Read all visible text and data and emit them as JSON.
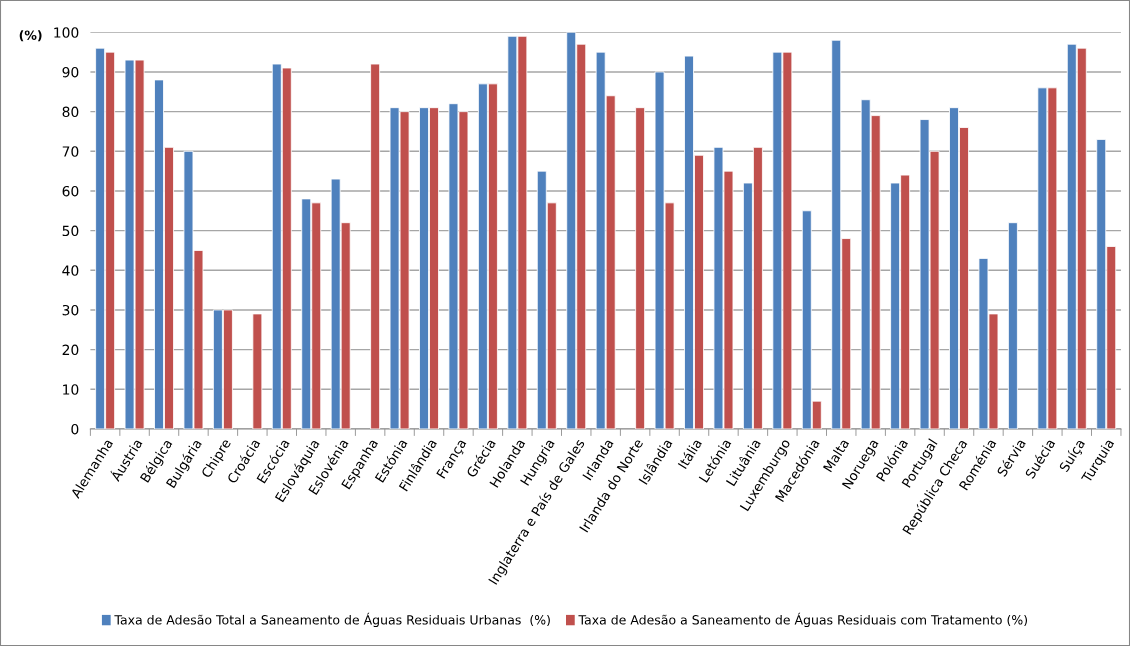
{
  "chart_data": {
    "type": "bar",
    "ylabel": "(%)",
    "categories": [
      "Alemanha",
      "Áustria",
      "Bélgica",
      "Bulgária",
      "Chipre",
      "Croácia",
      "Escócia",
      "Eslováquia",
      "Eslovénia",
      "Espanha",
      "Estónia",
      "Finlândia",
      "França",
      "Grécia",
      "Holanda",
      "Hungria",
      "Inglaterra e País de Gales",
      "Irlanda",
      "Irlanda do Norte",
      "Islândia",
      "Itália",
      "Letónia",
      "Lituânia",
      "Luxemburgo",
      "Macedónia",
      "Malta",
      "Noruega",
      "Polónia",
      "Portugal",
      "República Checa",
      "Roménia",
      "Sérvia",
      "Suécia",
      "Suíça",
      "Turquia"
    ],
    "series": [
      {
        "name": "Taxa de Adesão Total a Saneamento de Águas Residuais Urbanas  (%)",
        "color": "#4f81bd",
        "values": [
          96,
          93,
          88,
          70,
          30,
          null,
          92,
          58,
          63,
          null,
          81,
          81,
          82,
          87,
          99,
          65,
          100,
          95,
          null,
          90,
          94,
          71,
          62,
          95,
          55,
          98,
          83,
          62,
          78,
          81,
          43,
          52,
          86,
          97,
          73
        ]
      },
      {
        "name": "Taxa de Adesão a Saneamento de Águas Residuais com Tratamento (%)",
        "color": "#c0504d",
        "values": [
          95,
          93,
          71,
          45,
          30,
          29,
          91,
          57,
          52,
          92,
          80,
          81,
          80,
          87,
          99,
          57,
          97,
          84,
          81,
          57,
          69,
          65,
          71,
          95,
          7,
          48,
          79,
          64,
          70,
          76,
          29,
          null,
          86,
          96,
          46
        ]
      }
    ],
    "ylim": [
      0,
      100
    ],
    "yticks": [
      0,
      10,
      20,
      30,
      40,
      50,
      60,
      70,
      80,
      90,
      100
    ],
    "grid": "y",
    "legend": "bottom"
  }
}
